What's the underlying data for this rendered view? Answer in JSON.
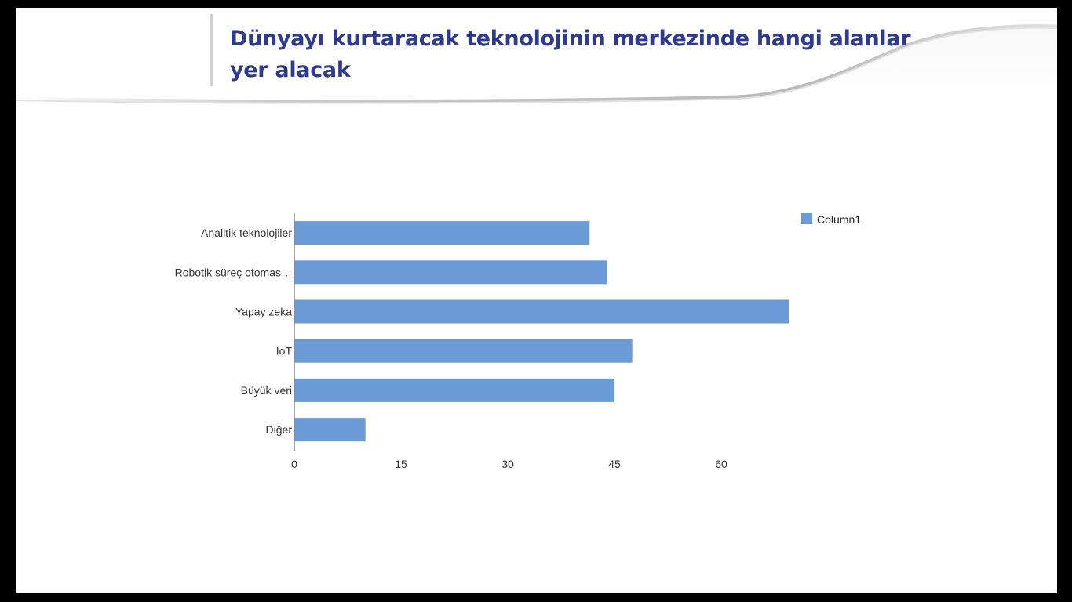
{
  "slide": {
    "title": "Dünyayı kurtaracak teknolojinin merkezinde hangi alanlar yer alacak"
  },
  "colors": {
    "title": "#2e3a8c",
    "bar": "#6b9bd6",
    "axis": "#888888"
  },
  "chart_data": {
    "type": "bar",
    "orientation": "horizontal",
    "categories": [
      "Analitik teknolojiler",
      "Robotik süreç otomas…",
      "Yapay zeka",
      "IoT",
      "Büyük veri",
      "Diğer"
    ],
    "series": [
      {
        "name": "Column1",
        "values": [
          41.5,
          44,
          69.5,
          47.5,
          45,
          10
        ]
      }
    ],
    "x_ticks": [
      0,
      15,
      30,
      45,
      60
    ],
    "xlim": [
      0,
      75
    ],
    "grid": false,
    "legend_position": "top-right"
  }
}
